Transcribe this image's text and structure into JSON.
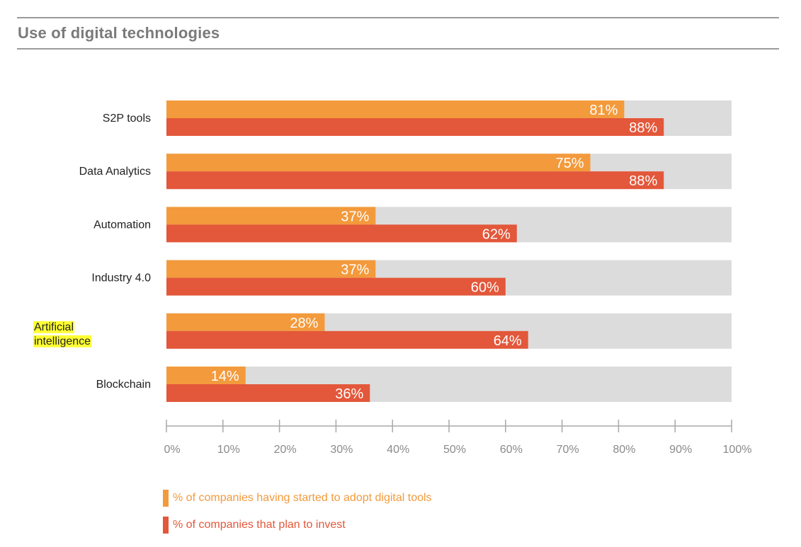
{
  "title": "Use of digital technologies",
  "colors": {
    "adopt": "#f39a3c",
    "invest": "#e3573a",
    "track": "#dcdcdc",
    "axis": "#a8a8a8",
    "tick_label": "#8a8a8a",
    "highlight": "#ffff33"
  },
  "chart_data": {
    "type": "bar",
    "orientation": "horizontal",
    "categories": [
      "S2P tools",
      "Data Analytics",
      "Automation",
      "Industry 4.0",
      "Artificial intelligence",
      "Blockchain"
    ],
    "category_label_lines": [
      [
        "S2P tools"
      ],
      [
        "Data Analytics"
      ],
      [
        "Automation"
      ],
      [
        "Industry 4.0"
      ],
      [
        "Artificial",
        "intelligence"
      ],
      [
        "Blockchain"
      ]
    ],
    "highlighted_category": "Artificial intelligence",
    "series": [
      {
        "name": "% of companies having started to adopt digital tools",
        "key": "adopt",
        "values": [
          81,
          75,
          37,
          37,
          28,
          14
        ],
        "labels": [
          "81%",
          "75%",
          "37%",
          "37%",
          "28%",
          "14%"
        ]
      },
      {
        "name": "% of companies that plan to invest",
        "key": "invest",
        "values": [
          88,
          88,
          62,
          60,
          64,
          36
        ],
        "labels": [
          "88%",
          "88%",
          "62%",
          "60%",
          "64%",
          "36%"
        ]
      }
    ],
    "xlim": [
      0,
      100
    ],
    "ticks": [
      0,
      10,
      20,
      30,
      40,
      50,
      60,
      70,
      80,
      90,
      100
    ],
    "tick_labels": [
      "0%",
      "10%",
      "20%",
      "30%",
      "40%",
      "50%",
      "60%",
      "70%",
      "80%",
      "90%",
      "100%"
    ],
    "legend_position": "bottom-left",
    "grid": false
  }
}
